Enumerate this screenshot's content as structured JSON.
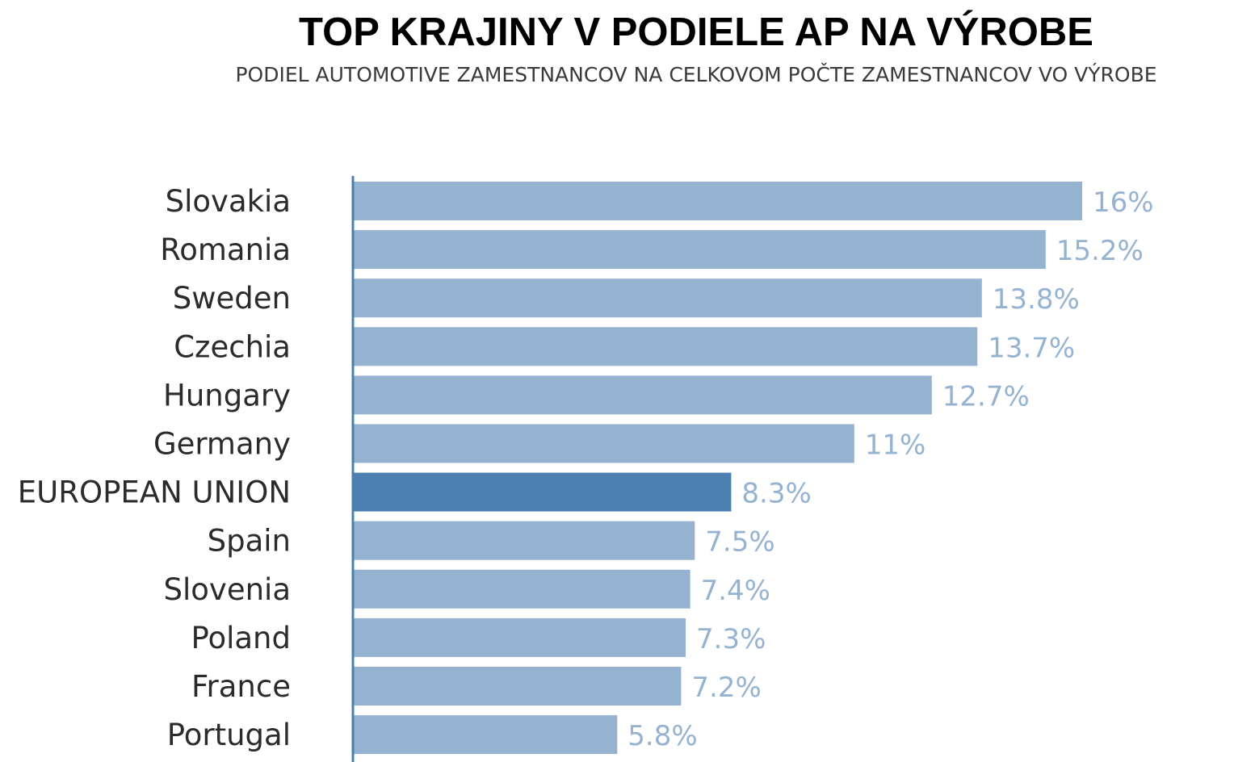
{
  "chart_data": {
    "type": "bar",
    "orientation": "horizontal",
    "title": "TOP KRAJINY V PODIELE AP NA VÝROBE",
    "subtitle": "PODIEL AUTOMOTIVE ZAMESTNANCOV NA CELKOVOM POČTE ZAMESTNANCOV VO VÝROBE",
    "categories": [
      "Slovakia",
      "Romania",
      "Sweden",
      "Czechia",
      "Hungary",
      "Germany",
      "EUROPEAN UNION",
      "Spain",
      "Slovenia",
      "Poland",
      "France",
      "Portugal"
    ],
    "values": [
      16,
      15.2,
      13.8,
      13.7,
      12.7,
      11,
      8.3,
      7.5,
      7.4,
      7.3,
      7.2,
      5.8
    ],
    "value_labels": [
      "16%",
      "15.2%",
      "13.8%",
      "13.7%",
      "12.7%",
      "11%",
      "8.3%",
      "7.5%",
      "7.4%",
      "7.3%",
      "7.2%",
      "5.8%"
    ],
    "highlight": "EUROPEAN UNION",
    "xlabel": "",
    "ylabel": "",
    "xlim": [
      0,
      16
    ],
    "grid": false,
    "legend": "none",
    "colors": {
      "bar": "#95b3d1",
      "highlight_bar": "#4a7fb0",
      "value_label": "#95b3d1",
      "axis": "#4a7fb0"
    }
  }
}
